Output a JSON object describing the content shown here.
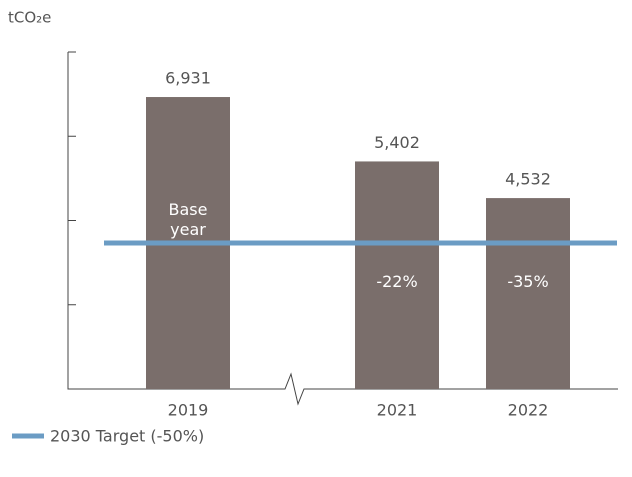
{
  "chart_data": {
    "type": "bar",
    "y_axis_label": "tCO₂e",
    "categories": [
      "2019",
      "2021",
      "2022"
    ],
    "values": [
      6931,
      5402,
      4532
    ],
    "value_labels": [
      "6,931",
      "5,402",
      "4,532"
    ],
    "inner_labels": [
      "Base year",
      "-22%",
      "-35%"
    ],
    "color": "#7a6e6b",
    "ylim": [
      0,
      8000
    ],
    "yticks": [
      0,
      2000,
      4000,
      6000,
      8000
    ],
    "target": {
      "name": "2030 Target (-50%)",
      "value": 3466,
      "color": "#6b9cc4"
    }
  }
}
